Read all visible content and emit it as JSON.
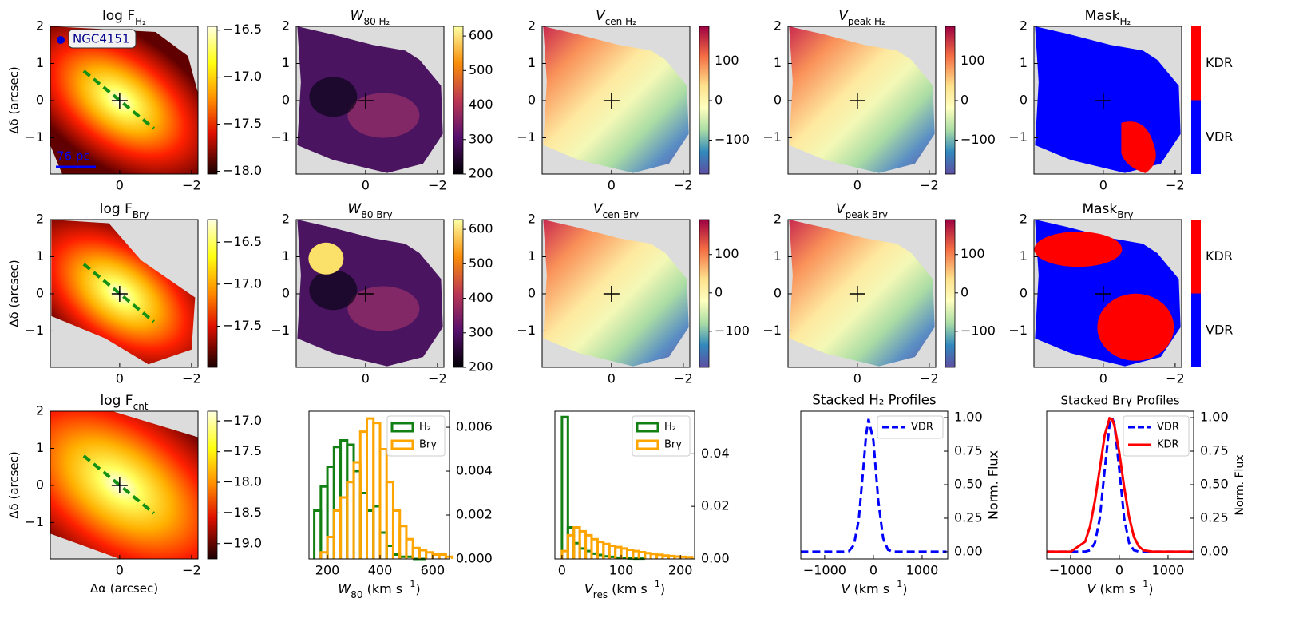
{
  "chart_data": [
    {
      "type": "map",
      "title": [
        [
          "log F",
          ""
        ],
        [
          "H₂",
          "sub"
        ]
      ],
      "cmap": "hot",
      "shape": "wide",
      "ylabel": "Δδ (arcsec)",
      "xlim": [
        1.93,
        -2.18
      ],
      "ylim": [
        -1.98,
        2
      ],
      "xticks": [
        0,
        {
          "value": -2,
          "label": "−2"
        }
      ],
      "yticks": [
        2,
        1,
        0,
        {
          "value": -1,
          "label": "−1"
        }
      ],
      "cbar_lim": [
        -18.03,
        -16.46
      ],
      "cbar_ticks": [
        {
          "value": -16.5,
          "label": "−16.5"
        },
        {
          "value": -17.0,
          "label": "−17.0"
        },
        {
          "value": -17.5,
          "label": "−17.5"
        },
        {
          "value": -18.0,
          "label": "−18.0"
        }
      ],
      "annotations": [
        "NGC4151",
        "76 pc"
      ]
    },
    {
      "type": "map",
      "title": [
        [
          "W",
          "i"
        ],
        [
          "80 H₂",
          "sub"
        ]
      ],
      "cmap": "inferno",
      "shape": "cloud",
      "xlim": [
        1.93,
        -2.18
      ],
      "ylim": [
        -1.98,
        2
      ],
      "xticks": [
        0,
        {
          "value": -2,
          "label": "−2"
        }
      ],
      "yticks": [
        2,
        1,
        0,
        {
          "value": -1,
          "label": "−1"
        }
      ],
      "cbar_lim": [
        200,
        628
      ],
      "cbar_ticks": [
        200,
        300,
        400,
        500,
        600
      ]
    },
    {
      "type": "map",
      "title": [
        [
          "V",
          "i"
        ],
        [
          "cen H₂",
          "sub"
        ]
      ],
      "cmap": "spectral",
      "shape": "cloud",
      "xlim": [
        1.93,
        -2.18
      ],
      "ylim": [
        -1.98,
        2
      ],
      "xticks": [
        0,
        {
          "value": -2,
          "label": "−2"
        }
      ],
      "yticks": [
        2,
        1,
        0,
        {
          "value": -1,
          "label": "−1"
        }
      ],
      "cbar_lim": [
        -186,
        188
      ],
      "cbar_ticks": [
        100,
        0,
        {
          "value": -100,
          "label": "−100"
        }
      ]
    },
    {
      "type": "map",
      "title": [
        [
          "V",
          "i"
        ],
        [
          "peak H₂",
          "sub"
        ]
      ],
      "cmap": "spectral",
      "shape": "cloud",
      "xlim": [
        1.93,
        -2.18
      ],
      "ylim": [
        -1.98,
        2
      ],
      "xticks": [
        0,
        {
          "value": -2,
          "label": "−2"
        }
      ],
      "yticks": [
        2,
        1,
        0,
        {
          "value": -1,
          "label": "−1"
        }
      ],
      "cbar_lim": [
        -186,
        188
      ],
      "cbar_ticks": [
        100,
        0,
        {
          "value": -100,
          "label": "−100"
        }
      ]
    },
    {
      "type": "map",
      "title": [
        [
          "Mask",
          ""
        ],
        [
          "H₂",
          "sub"
        ]
      ],
      "cmap": "mask",
      "shape": "cloud",
      "xlim": [
        1.93,
        -2.18
      ],
      "ylim": [
        -1.98,
        2
      ],
      "xticks": [
        0,
        {
          "value": -2,
          "label": "−2"
        }
      ],
      "yticks": [
        2,
        1,
        0,
        {
          "value": -1,
          "label": "−1"
        }
      ],
      "cbar_labels": [
        "KDR",
        "VDR"
      ]
    },
    {
      "type": "map",
      "title": [
        [
          "log F",
          ""
        ],
        [
          "Brγ",
          "sub"
        ]
      ],
      "cmap": "hot",
      "shape": "diag",
      "ylabel": "Δδ (arcsec)",
      "xlim": [
        1.93,
        -2.18
      ],
      "ylim": [
        -1.98,
        2
      ],
      "xticks": [
        0,
        {
          "value": -2,
          "label": "−2"
        }
      ],
      "yticks": [
        2,
        1,
        0,
        {
          "value": -1,
          "label": "−1"
        }
      ],
      "cbar_lim": [
        -17.99,
        -16.23
      ],
      "cbar_ticks": [
        {
          "value": -16.5,
          "label": "−16.5"
        },
        {
          "value": -17.0,
          "label": "−17.0"
        },
        {
          "value": -17.5,
          "label": "−17.5"
        }
      ]
    },
    {
      "type": "map",
      "title": [
        [
          "W",
          "i"
        ],
        [
          "80 Brγ",
          "sub"
        ]
      ],
      "cmap": "inferno",
      "shape": "cloud",
      "xlim": [
        1.93,
        -2.18
      ],
      "ylim": [
        -1.98,
        2
      ],
      "xticks": [
        0,
        {
          "value": -2,
          "label": "−2"
        }
      ],
      "yticks": [
        2,
        1,
        0,
        {
          "value": -1,
          "label": "−1"
        }
      ],
      "cbar_lim": [
        200,
        628
      ],
      "cbar_ticks": [
        200,
        300,
        400,
        500,
        600
      ]
    },
    {
      "type": "map",
      "title": [
        [
          "V",
          "i"
        ],
        [
          "cen Brγ",
          "sub"
        ]
      ],
      "cmap": "spectral",
      "shape": "cloud",
      "xlim": [
        1.93,
        -2.18
      ],
      "ylim": [
        -1.98,
        2
      ],
      "xticks": [
        0,
        {
          "value": -2,
          "label": "−2"
        }
      ],
      "yticks": [
        2,
        1,
        0,
        {
          "value": -1,
          "label": "−1"
        }
      ],
      "cbar_lim": [
        -194,
        191
      ],
      "cbar_ticks": [
        100,
        0,
        {
          "value": -100,
          "label": "−100"
        }
      ]
    },
    {
      "type": "map",
      "title": [
        [
          "V",
          "i"
        ],
        [
          "peak Brγ",
          "sub"
        ]
      ],
      "cmap": "spectral",
      "shape": "cloud",
      "xlim": [
        1.93,
        -2.18
      ],
      "ylim": [
        -1.98,
        2
      ],
      "xticks": [
        0,
        {
          "value": -2,
          "label": "−2"
        }
      ],
      "yticks": [
        2,
        1,
        0,
        {
          "value": -1,
          "label": "−1"
        }
      ],
      "cbar_lim": [
        -194,
        191
      ],
      "cbar_ticks": [
        100,
        0,
        {
          "value": -100,
          "label": "−100"
        }
      ]
    },
    {
      "type": "map",
      "title": [
        [
          "Mask",
          ""
        ],
        [
          "Brγ",
          "sub"
        ]
      ],
      "cmap": "mask",
      "shape": "cloud",
      "xlim": [
        1.93,
        -2.18
      ],
      "ylim": [
        -1.98,
        2
      ],
      "xticks": [
        0,
        {
          "value": -2,
          "label": "−2"
        }
      ],
      "yticks": [
        2,
        1,
        0,
        {
          "value": -1,
          "label": "−1"
        }
      ],
      "cbar_labels": [
        "KDR",
        "VDR"
      ]
    },
    {
      "type": "map",
      "title": [
        [
          "log F",
          ""
        ],
        [
          "cnt",
          "sub"
        ]
      ],
      "cmap": "hot",
      "shape": "band",
      "ylabel": "Δδ (arcsec)",
      "xlabel": [
        [
          "Δα (arcsec)",
          ""
        ]
      ],
      "xlim": [
        1.93,
        -2.18
      ],
      "ylim": [
        -1.98,
        2
      ],
      "xticks": [
        0,
        {
          "value": -2,
          "label": "−2"
        }
      ],
      "yticks": [
        2,
        1,
        0,
        {
          "value": -1,
          "label": "−1"
        }
      ],
      "cbar_lim": [
        -19.25,
        -16.84
      ],
      "cbar_ticks": [
        {
          "value": -17.0,
          "label": "−17.0"
        },
        {
          "value": -17.5,
          "label": "−17.5"
        },
        {
          "value": -18.0,
          "label": "−18.0"
        },
        {
          "value": -18.5,
          "label": "−18.5"
        },
        {
          "value": -19.0,
          "label": "−19.0"
        }
      ]
    },
    {
      "type": "histogram",
      "xlabel": [
        [
          "W",
          "i"
        ],
        [
          "80",
          "sub"
        ],
        [
          " (km s",
          ""
        ],
        [
          "−1",
          "sup"
        ],
        [
          ")",
          ""
        ]
      ],
      "xlim": [
        130,
        664
      ],
      "ylim": [
        0,
        0.00673
      ],
      "xticks": [
        200,
        400,
        600
      ],
      "yticks": [
        {
          "value": 0,
          "label": "0.000"
        },
        {
          "value": 0.002,
          "label": "0.002"
        },
        {
          "value": 0.004,
          "label": "0.004"
        },
        {
          "value": 0.006,
          "label": "0.006"
        }
      ],
      "legend": "upper right",
      "series": [
        {
          "name": "H₂",
          "color": "#138013",
          "bins": [
            150,
            175,
            200,
            225,
            250,
            275,
            300,
            325,
            350,
            375,
            400,
            425,
            450,
            475,
            500,
            525,
            550,
            575
          ],
          "values": [
            0.0022,
            0.0033,
            0.0042,
            0.0051,
            0.0054,
            0.0052,
            0.004,
            0.003,
            0.0022,
            0.0024,
            0.0012,
            0.0006,
            0.0002,
            0.0001,
            0.0001,
            0,
            0
          ]
        },
        {
          "name": "Brγ",
          "color": "#ffa500",
          "bins": [
            175,
            200,
            225,
            250,
            275,
            300,
            325,
            350,
            375,
            400,
            425,
            450,
            475,
            500,
            525,
            550,
            575,
            600,
            625,
            650,
            675
          ],
          "values": [
            0.0003,
            0.001,
            0.0022,
            0.0028,
            0.0035,
            0.0044,
            0.0058,
            0.0064,
            0.0062,
            0.005,
            0.0035,
            0.0022,
            0.0015,
            0.0009,
            0.0005,
            0.0004,
            0.0003,
            0.0002,
            0.0002,
            0.0001
          ]
        }
      ]
    },
    {
      "type": "histogram",
      "xlabel": [
        [
          "V",
          "i"
        ],
        [
          "res",
          "sub"
        ],
        [
          " (km s",
          ""
        ],
        [
          "−1",
          "sup"
        ],
        [
          ")",
          ""
        ]
      ],
      "xlim": [
        -12,
        224
      ],
      "ylim": [
        0,
        0.0562
      ],
      "xticks": [
        0,
        100,
        200
      ],
      "yticks": [
        {
          "value": 0,
          "label": "0.00"
        },
        {
          "value": 0.02,
          "label": "0.02"
        },
        {
          "value": 0.04,
          "label": "0.04"
        }
      ],
      "legend": "upper right",
      "series": [
        {
          "name": "H₂",
          "color": "#138013",
          "bins": [
            0,
            10,
            20,
            30,
            40,
            50,
            60,
            70,
            80,
            90,
            100,
            110,
            120,
            130,
            140
          ],
          "values": [
            0.054,
            0.012,
            0.006,
            0.004,
            0.003,
            0.002,
            0.0015,
            0.001,
            0.0008,
            0.0005,
            0.0003,
            0.0002,
            0.0001,
            0.0001
          ]
        },
        {
          "name": "Brγ",
          "color": "#ffa500",
          "bins": [
            0,
            10,
            20,
            30,
            40,
            50,
            60,
            70,
            80,
            90,
            100,
            110,
            120,
            130,
            140,
            150,
            160,
            170,
            180,
            190,
            200,
            210,
            220
          ],
          "values": [
            0.003,
            0.009,
            0.012,
            0.0105,
            0.009,
            0.0075,
            0.0065,
            0.0057,
            0.005,
            0.0045,
            0.004,
            0.0035,
            0.003,
            0.0026,
            0.0022,
            0.0019,
            0.0016,
            0.0013,
            0.0011,
            0.0009,
            0.0008,
            0.0007
          ]
        }
      ]
    },
    {
      "type": "line",
      "title": "Stacked H₂ Profiles",
      "ylabel": "Norm. Flux",
      "xlabel": [
        [
          "V",
          "i"
        ],
        [
          " (km s",
          ""
        ],
        [
          "−1",
          "sup"
        ],
        [
          ")",
          ""
        ]
      ],
      "xlim": [
        -1490,
        1525
      ],
      "ylim": [
        -0.054,
        1.048
      ],
      "xticks": [
        {
          "value": -1000,
          "label": "−1000"
        },
        0,
        1000
      ],
      "yticks": [
        {
          "value": 0,
          "label": "0.00"
        },
        {
          "value": 0.25,
          "label": "0.25"
        },
        {
          "value": 0.5,
          "label": "0.50"
        },
        {
          "value": 0.75,
          "label": "0.75"
        },
        {
          "value": 1,
          "label": "1.00"
        }
      ],
      "legend": "upper right",
      "x": [
        -1500,
        -1000,
        -700,
        -600,
        -500,
        -400,
        -300,
        -200,
        -150,
        -100,
        0,
        100,
        200,
        300,
        400,
        500,
        700,
        1000,
        1500
      ],
      "series": [
        {
          "name": "VDR",
          "color": "#0000ff",
          "dash": true,
          "values": [
            0,
            0,
            0,
            0,
            0.005,
            0.05,
            0.24,
            0.65,
            0.87,
            0.99,
            0.83,
            0.38,
            0.1,
            0.014,
            0.001,
            0,
            0,
            0,
            0
          ]
        }
      ]
    },
    {
      "type": "line",
      "title": "Stacked Brγ Profiles",
      "ylabel": "Norm. Flux",
      "xlabel": [
        [
          "V",
          "i"
        ],
        [
          " (km s",
          ""
        ],
        [
          "−1",
          "sup"
        ],
        [
          ")",
          ""
        ]
      ],
      "xlim": [
        -1490,
        1525
      ],
      "ylim": [
        -0.054,
        1.048
      ],
      "xticks": [
        {
          "value": -1000,
          "label": "−1000"
        },
        0,
        1000
      ],
      "yticks": [
        {
          "value": 0,
          "label": "0.00"
        },
        {
          "value": 0.25,
          "label": "0.25"
        },
        {
          "value": 0.5,
          "label": "0.50"
        },
        {
          "value": 0.75,
          "label": "0.75"
        },
        {
          "value": 1,
          "label": "1.00"
        }
      ],
      "legend": "upper right",
      "x": [
        -1500,
        -1000,
        -700,
        -600,
        -500,
        -400,
        -300,
        -200,
        -150,
        -100,
        0,
        100,
        200,
        300,
        400,
        500,
        700,
        1000,
        1500
      ],
      "series": [
        {
          "name": "VDR",
          "color": "#0000ff",
          "dash": true,
          "values": [
            0,
            0,
            0.001,
            0.011,
            0.066,
            0.25,
            0.61,
            0.95,
            1.0,
            0.95,
            0.61,
            0.25,
            0.066,
            0.011,
            0.001,
            0,
            0,
            0,
            0
          ]
        },
        {
          "name": "KDR",
          "color": "#ff0000",
          "dash": false,
          "values": [
            0,
            0,
            0.075,
            0.19,
            0.38,
            0.62,
            0.87,
            0.996,
            0.99,
            0.94,
            0.74,
            0.48,
            0.26,
            0.11,
            0.04,
            0.01,
            0,
            0,
            0
          ]
        }
      ]
    }
  ]
}
